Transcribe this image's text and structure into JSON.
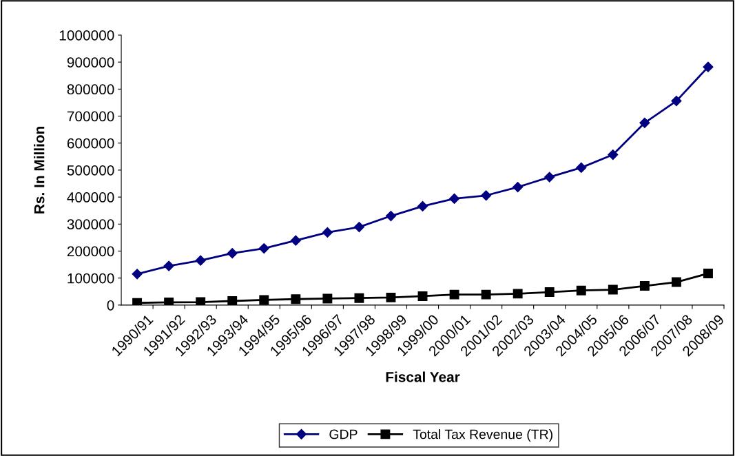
{
  "chart_data": {
    "type": "line",
    "xlabel": "Fiscal Year",
    "ylabel": "Rs. In Million",
    "categories": [
      "1990/91",
      "1991/92",
      "1992/93",
      "1993/94",
      "1994/95",
      "1995/96",
      "1996/97",
      "1997/98",
      "1998/99",
      "1999/00",
      "2000/01",
      "2001/02",
      "2002/03",
      "2003/04",
      "2004/05",
      "2005/06",
      "2006/07",
      "2007/08",
      "2008/09"
    ],
    "series": [
      {
        "name": "GDP",
        "color": "#000080",
        "marker": "diamond",
        "values": [
          115000,
          145000,
          165000,
          192000,
          210000,
          239000,
          269000,
          289000,
          330000,
          366000,
          394000,
          406000,
          437000,
          474000,
          509000,
          557000,
          675000,
          756000,
          882000
        ]
      },
      {
        "name": "Total Tax Revenue (TR)",
        "color": "#000000",
        "marker": "square",
        "values": [
          8000,
          10000,
          11000,
          15000,
          19000,
          22000,
          24000,
          26000,
          28000,
          33000,
          39000,
          39000,
          42000,
          48000,
          54000,
          57000,
          71000,
          85000,
          117000
        ]
      }
    ],
    "ylim": [
      0,
      1000000
    ],
    "yticks": [
      0,
      100000,
      200000,
      300000,
      400000,
      500000,
      600000,
      700000,
      800000,
      900000,
      1000000
    ],
    "grid": false,
    "legend": "bottom",
    "line_style": "solid"
  }
}
